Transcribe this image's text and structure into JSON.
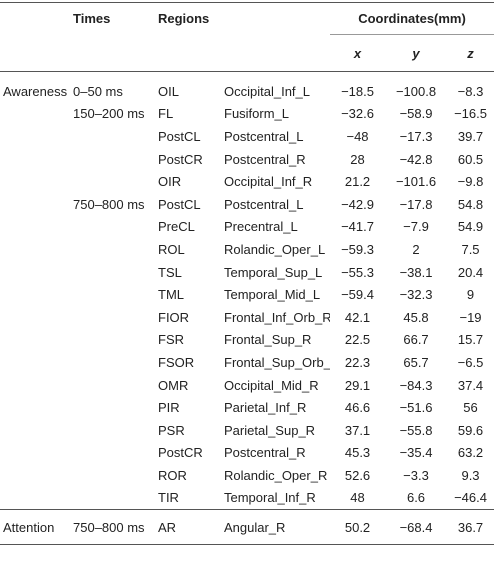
{
  "table": {
    "header": {
      "times": "Times",
      "regions": "Regions",
      "coordinates": "Coordinates(mm)",
      "x": "x",
      "y": "y",
      "z": "z"
    },
    "rows": [
      {
        "group": "Awareness",
        "time": "0–50 ms",
        "abbr": "OIL",
        "region": "Occipital_Inf_L",
        "x": "−18.5",
        "y": "−100.8",
        "z": "−8.3"
      },
      {
        "time": "150–200 ms",
        "abbr": "FL",
        "region": "Fusiform_L",
        "x": "−32.6",
        "y": "−58.9",
        "z": "−16.5"
      },
      {
        "abbr": "PostCL",
        "region": "Postcentral_L",
        "x": "−48",
        "y": "−17.3",
        "z": "39.7"
      },
      {
        "abbr": "PostCR",
        "region": "Postcentral_R",
        "x": "28",
        "y": "−42.8",
        "z": "60.5"
      },
      {
        "abbr": "OIR",
        "region": "Occipital_Inf_R",
        "x": "21.2",
        "y": "−101.6",
        "z": "−9.8"
      },
      {
        "time": "750–800 ms",
        "abbr": "PostCL",
        "region": "Postcentral_L",
        "x": "−42.9",
        "y": "−17.8",
        "z": "54.8"
      },
      {
        "abbr": "PreCL",
        "region": "Precentral_L",
        "x": "−41.7",
        "y": "−7.9",
        "z": "54.9"
      },
      {
        "abbr": "ROL",
        "region": "Rolandic_Oper_L",
        "x": "−59.3",
        "y": "2",
        "z": "7.5"
      },
      {
        "abbr": "TSL",
        "region": "Temporal_Sup_L",
        "x": "−55.3",
        "y": "−38.1",
        "z": "20.4"
      },
      {
        "abbr": "TML",
        "region": "Temporal_Mid_L",
        "x": "−59.4",
        "y": "−32.3",
        "z": "9"
      },
      {
        "abbr": "FIOR",
        "region": "Frontal_Inf_Orb_R",
        "x": "42.1",
        "y": "45.8",
        "z": "−19"
      },
      {
        "abbr": "FSR",
        "region": "Frontal_Sup_R",
        "x": "22.5",
        "y": "66.7",
        "z": "15.7"
      },
      {
        "abbr": "FSOR",
        "region": "Frontal_Sup_Orb_R",
        "x": "22.3",
        "y": "65.7",
        "z": "−6.5"
      },
      {
        "abbr": "OMR",
        "region": "Occipital_Mid_R",
        "x": "29.1",
        "y": "−84.3",
        "z": "37.4"
      },
      {
        "abbr": "PIR",
        "region": "Parietal_Inf_R",
        "x": "46.6",
        "y": "−51.6",
        "z": "56"
      },
      {
        "abbr": "PSR",
        "region": "Parietal_Sup_R",
        "x": "37.1",
        "y": "−55.8",
        "z": "59.6"
      },
      {
        "abbr": "PostCR",
        "region": "Postcentral_R",
        "x": "45.3",
        "y": "−35.4",
        "z": "63.2"
      },
      {
        "abbr": "ROR",
        "region": "Rolandic_Oper_R",
        "x": "52.6",
        "y": "−3.3",
        "z": "9.3"
      },
      {
        "abbr": "TIR",
        "region": "Temporal_Inf_R",
        "x": "48",
        "y": "6.6",
        "z": "−46.4"
      },
      {
        "group": "Attention",
        "time": "750–800 ms",
        "abbr": "AR",
        "region": "Angular_R",
        "x": "50.2",
        "y": "−68.4",
        "z": "36.7"
      }
    ]
  }
}
